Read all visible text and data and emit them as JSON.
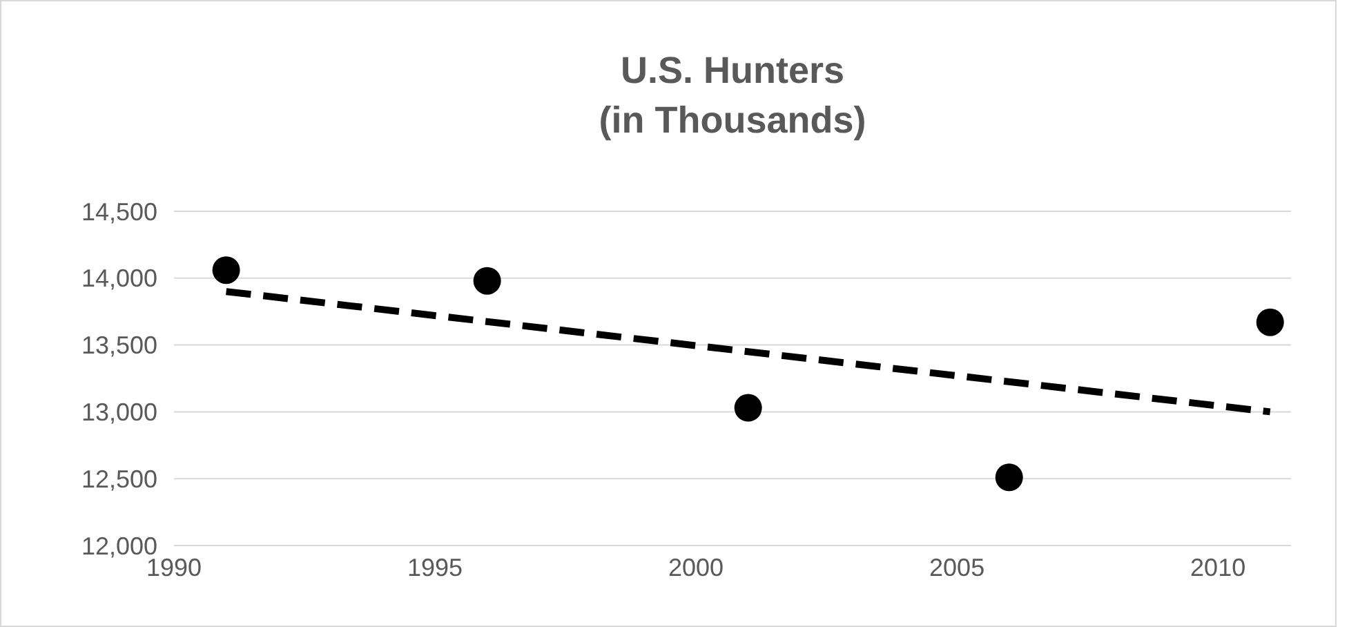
{
  "chart_data": {
    "type": "scatter",
    "title": "U.S. Hunters\n(in Thousands)",
    "x": [
      1991,
      1996,
      2001,
      2006,
      2011
    ],
    "series": [
      {
        "color": "#000000",
        "values": [
          14060,
          13980,
          13030,
          12510,
          13670
        ],
        "marker": "circle"
      },
      {
        "type": "line",
        "color": "#000000",
        "x": [
          1991,
          2011
        ],
        "values": [
          13900,
          13000
        ],
        "line_style": "dashed"
      }
    ],
    "xlim": [
      1990,
      2011.4
    ],
    "xticks": [
      1990,
      1995,
      2000,
      2005,
      2010
    ],
    "ylim": [
      12000,
      14500
    ],
    "yticks": [
      {
        "value": 12000,
        "label": "12,000"
      },
      {
        "value": 12500,
        "label": "12,500"
      },
      {
        "value": 13000,
        "label": "13,000"
      },
      {
        "value": 13500,
        "label": "13,500"
      },
      {
        "value": 14000,
        "label": "14,000"
      },
      {
        "value": 14500,
        "label": "14,500"
      }
    ],
    "grid": "y"
  }
}
